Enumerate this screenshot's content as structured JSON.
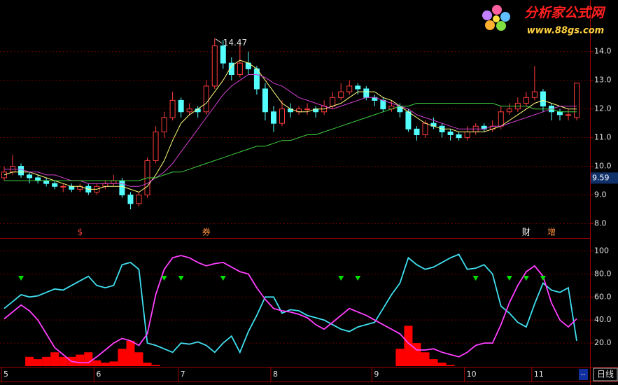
{
  "logo": {
    "name": "分析家公式网",
    "url": "www.88gs.com"
  },
  "chart_data": [
    {
      "type": "candlestick",
      "open": [
        9.6,
        9.8,
        10.0,
        9.7,
        9.6,
        9.5,
        9.4,
        9.3,
        9.3,
        9.2,
        9.3,
        9.1,
        9.3,
        9.4,
        9.5,
        9.0,
        8.7,
        9.0,
        10.2,
        11.2,
        11.7,
        12.3,
        11.9,
        12.0,
        11.9,
        12.8,
        14.2,
        13.6,
        13.2,
        13.6,
        13.4,
        12.7,
        11.9,
        11.5,
        12.0,
        11.9,
        12.0,
        12.0,
        11.9,
        12.1,
        12.4,
        12.6,
        12.8,
        12.7,
        12.4,
        12.3,
        12.0,
        12.1,
        11.9,
        11.3,
        11.1,
        11.5,
        11.4,
        11.2,
        11.1,
        11.0,
        11.2,
        11.4,
        11.3,
        11.4,
        11.9,
        12.0,
        12.2,
        12.4,
        12.6,
        12.1,
        11.9,
        11.8,
        11.7
      ],
      "high": [
        10.0,
        10.4,
        10.1,
        9.8,
        9.7,
        9.6,
        9.5,
        9.4,
        9.4,
        9.4,
        9.4,
        9.4,
        9.5,
        9.7,
        9.6,
        9.1,
        9.1,
        10.3,
        11.4,
        11.9,
        12.6,
        12.4,
        12.2,
        12.1,
        13.0,
        14.47,
        14.4,
        13.8,
        14.3,
        14.0,
        13.5,
        12.9,
        12.1,
        12.3,
        12.2,
        12.1,
        12.2,
        12.1,
        12.3,
        12.6,
        12.9,
        13.0,
        12.9,
        12.8,
        12.5,
        12.4,
        12.3,
        12.2,
        12.0,
        11.4,
        11.6,
        11.7,
        11.5,
        11.3,
        11.2,
        11.4,
        11.5,
        11.5,
        11.6,
        12.1,
        12.2,
        12.4,
        12.6,
        13.5,
        12.7,
        12.2,
        12.0,
        12.0,
        12.9
      ],
      "low": [
        9.5,
        9.7,
        9.6,
        9.4,
        9.4,
        9.3,
        9.2,
        9.1,
        9.1,
        9.1,
        9.0,
        9.0,
        9.2,
        9.3,
        8.9,
        8.5,
        8.6,
        8.9,
        10.1,
        11.0,
        11.6,
        11.7,
        11.8,
        11.7,
        11.8,
        12.7,
        13.4,
        13.0,
        13.1,
        13.2,
        12.5,
        11.6,
        11.2,
        11.4,
        11.7,
        11.8,
        11.8,
        11.7,
        11.8,
        12.0,
        12.3,
        12.5,
        12.5,
        12.3,
        12.1,
        11.9,
        11.9,
        11.7,
        11.2,
        10.9,
        11.0,
        11.3,
        11.0,
        10.9,
        10.9,
        10.9,
        11.1,
        11.2,
        11.2,
        11.3,
        11.8,
        11.9,
        12.1,
        12.3,
        11.9,
        11.6,
        11.6,
        11.6,
        11.6
      ],
      "close": [
        9.8,
        10.0,
        9.7,
        9.6,
        9.5,
        9.4,
        9.3,
        9.3,
        9.2,
        9.3,
        9.1,
        9.3,
        9.4,
        9.5,
        9.0,
        8.7,
        9.0,
        10.2,
        11.2,
        11.7,
        12.3,
        11.9,
        12.0,
        11.9,
        12.8,
        14.2,
        13.6,
        13.2,
        13.6,
        13.4,
        12.7,
        11.9,
        11.5,
        12.0,
        11.9,
        12.0,
        12.0,
        11.9,
        12.1,
        12.4,
        12.6,
        12.8,
        12.7,
        12.4,
        12.3,
        12.0,
        12.1,
        11.9,
        11.3,
        11.1,
        11.5,
        11.4,
        11.2,
        11.1,
        11.0,
        11.2,
        11.4,
        11.3,
        11.4,
        11.9,
        12.0,
        12.2,
        12.4,
        12.6,
        12.1,
        11.9,
        11.8,
        11.8,
        12.9
      ],
      "up_color": "#ff3c3c",
      "down_color": "#54ffff",
      "lines": [
        {
          "color": "#ffff80",
          "values": [
            9.7,
            9.8,
            9.8,
            9.8,
            9.7,
            9.6,
            9.5,
            9.4,
            9.3,
            9.3,
            9.2,
            9.2,
            9.3,
            9.3,
            9.3,
            9.2,
            9.1,
            9.3,
            9.7,
            10.2,
            10.9,
            11.5,
            11.8,
            12.0,
            12.2,
            12.6,
            13.0,
            13.5,
            13.7,
            13.6,
            13.4,
            13.0,
            12.6,
            12.2,
            12.0,
            11.9,
            11.9,
            12.0,
            12.0,
            12.1,
            12.2,
            12.4,
            12.6,
            12.6,
            12.6,
            12.4,
            12.3,
            12.1,
            11.9,
            11.7,
            11.5,
            11.4,
            11.3,
            11.3,
            11.2,
            11.2,
            11.2,
            11.2,
            11.3,
            11.4,
            11.6,
            11.8,
            12.0,
            12.2,
            12.3,
            12.2,
            12.1,
            12.0,
            12.0
          ]
        },
        {
          "color": "#d040d0",
          "values": [
            9.9,
            9.9,
            9.9,
            9.8,
            9.8,
            9.7,
            9.7,
            9.6,
            9.5,
            9.5,
            9.4,
            9.4,
            9.4,
            9.4,
            9.4,
            9.3,
            9.3,
            9.4,
            9.6,
            9.8,
            10.1,
            10.5,
            10.9,
            11.3,
            11.7,
            12.1,
            12.5,
            12.8,
            13.0,
            13.2,
            13.2,
            13.1,
            12.9,
            12.8,
            12.6,
            12.4,
            12.3,
            12.2,
            12.1,
            12.0,
            12.1,
            12.2,
            12.3,
            12.4,
            12.4,
            12.3,
            12.2,
            12.1,
            12.0,
            11.8,
            11.7,
            11.6,
            11.5,
            11.4,
            11.3,
            11.3,
            11.3,
            11.3,
            11.4,
            11.4,
            11.5,
            11.6,
            11.7,
            11.8,
            11.9,
            12.0,
            12.1,
            12.1,
            12.1
          ]
        },
        {
          "color": "#40d040",
          "values": [
            9.5,
            9.5,
            9.5,
            9.5,
            9.5,
            9.5,
            9.5,
            9.5,
            9.5,
            9.5,
            9.5,
            9.5,
            9.5,
            9.5,
            9.5,
            9.5,
            9.5,
            9.6,
            9.6,
            9.7,
            9.8,
            9.8,
            9.9,
            10.0,
            10.1,
            10.2,
            10.3,
            10.4,
            10.5,
            10.6,
            10.7,
            10.7,
            10.8,
            10.9,
            10.9,
            11.0,
            11.1,
            11.1,
            11.2,
            11.3,
            11.4,
            11.5,
            11.6,
            11.7,
            11.8,
            11.9,
            12.0,
            12.1,
            12.1,
            12.2,
            12.2,
            12.2,
            12.2,
            12.2,
            12.2,
            12.2,
            12.2,
            12.2,
            12.2,
            12.1,
            12.1,
            12.1,
            12.1,
            12.0,
            12.0,
            12.0,
            11.9,
            11.9,
            11.9
          ]
        }
      ],
      "price_marker": 9.59,
      "markers": [
        {
          "index": 9,
          "label": "$",
          "color": "#ff4040"
        },
        {
          "index": 24,
          "label": "券",
          "color": "#ff9040"
        },
        {
          "index": 62,
          "label": "财",
          "color": "#ffffff"
        },
        {
          "index": 65,
          "label": "增",
          "color": "#ff9040"
        }
      ],
      "ylim": [
        7.5,
        15.8
      ],
      "yticks": [
        {
          "value": 8,
          "label": "8.0"
        },
        {
          "value": 9,
          "label": "9.0"
        },
        {
          "value": 10,
          "label": "10.0"
        },
        {
          "value": 11,
          "label": "11.0"
        },
        {
          "value": 12,
          "label": "12.0"
        },
        {
          "value": 13,
          "label": "13.0"
        },
        {
          "value": 14,
          "label": "14.0"
        }
      ],
      "grid": true
    },
    {
      "type": "line",
      "categories": [
        "5",
        null,
        null,
        null,
        null,
        null,
        null,
        null,
        null,
        null,
        null,
        "6",
        null,
        null,
        null,
        null,
        null,
        null,
        null,
        null,
        null,
        "7",
        null,
        null,
        null,
        null,
        null,
        null,
        null,
        null,
        null,
        null,
        "8",
        null,
        null,
        null,
        null,
        null,
        null,
        null,
        null,
        null,
        null,
        null,
        "9",
        null,
        null,
        null,
        null,
        null,
        null,
        null,
        null,
        null,
        null,
        "10",
        null,
        null,
        null,
        null,
        null,
        null,
        null,
        "11",
        null,
        null,
        null,
        null,
        null
      ],
      "series": [
        {
          "color": "#40e0f0",
          "values": [
            50,
            56,
            62,
            60,
            61,
            64,
            67,
            66,
            70,
            74,
            78,
            70,
            68,
            70,
            88,
            90,
            84,
            20,
            18,
            15,
            12,
            20,
            19,
            21,
            18,
            12,
            20,
            26,
            12,
            30,
            44,
            60,
            60,
            46,
            49,
            48,
            44,
            42,
            40,
            36,
            32,
            30,
            34,
            36,
            38,
            50,
            62,
            72,
            94,
            88,
            84,
            86,
            90,
            94,
            97,
            84,
            85,
            88,
            80,
            52,
            46,
            38,
            34,
            54,
            72,
            66,
            64,
            68,
            22
          ]
        },
        {
          "color": "#ff40ff",
          "values": [
            41,
            47,
            53,
            48,
            40,
            28,
            16,
            10,
            4,
            3,
            3,
            8,
            14,
            20,
            24,
            22,
            18,
            28,
            62,
            84,
            94,
            96,
            94,
            90,
            87,
            89,
            90,
            86,
            82,
            80,
            68,
            58,
            50,
            48,
            47,
            45,
            42,
            36,
            32,
            38,
            44,
            50,
            47,
            44,
            40,
            36,
            32,
            28,
            20,
            14,
            14,
            15,
            12,
            10,
            8,
            12,
            18,
            20,
            20,
            36,
            55,
            70,
            82,
            87,
            78,
            55,
            40,
            34,
            41
          ]
        }
      ],
      "bars": {
        "color": "#ff0000",
        "values": [
          0,
          0,
          0,
          8,
          6,
          8,
          12,
          8,
          8,
          10,
          12,
          5,
          3,
          4,
          15,
          22,
          12,
          3,
          1,
          0,
          0,
          0,
          0,
          0,
          0,
          0,
          0,
          0,
          0,
          0,
          0,
          0,
          0,
          0,
          0,
          0,
          0,
          0,
          0,
          0,
          0,
          0,
          0,
          0,
          0,
          0,
          0,
          15,
          35,
          20,
          12,
          6,
          3,
          1,
          0,
          0,
          0,
          0,
          0,
          0,
          0,
          0,
          0,
          0,
          0,
          0,
          0,
          0,
          0
        ]
      },
      "signals": {
        "color": "#00e000",
        "indices": [
          2,
          19,
          21,
          26,
          40,
          42,
          56,
          60,
          62,
          64
        ]
      },
      "ylim": [
        0,
        110
      ],
      "yticks": [
        {
          "value": 20,
          "label": "20.0"
        },
        {
          "value": 40,
          "label": "40.0"
        },
        {
          "value": 60,
          "label": "60.0"
        },
        {
          "value": 80,
          "label": "80.0"
        },
        100
      ],
      "grid": true,
      "period": "日线",
      "scroll_label": "--"
    }
  ]
}
